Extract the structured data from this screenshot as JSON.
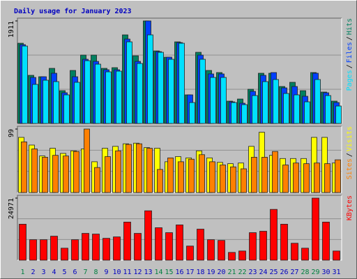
{
  "chart_data": [
    {
      "type": "bar",
      "title": "Daily usage for January 2023",
      "title_color": "#0000c0",
      "ylim": [
        0,
        1911
      ],
      "yticks": [
        1911
      ],
      "legend_separator": "/",
      "series": [
        {
          "name": "Hits",
          "color": "#008060",
          "values": [
            1495,
            897,
            871,
            1027,
            611,
            988,
            1274,
            1274,
            1027,
            1040,
            1651,
            1261,
            1911,
            1352,
            1235,
            1521,
            533,
            1326,
            988,
            949,
            416,
            455,
            637,
            936,
            936,
            689,
            767,
            611,
            949,
            585,
            416
          ]
        },
        {
          "name": "Files",
          "color": "#0040ff",
          "values": [
            1469,
            858,
            871,
            936,
            572,
            871,
            1196,
            1157,
            1001,
            1001,
            1573,
            1157,
            1911,
            1339,
            1235,
            1508,
            533,
            1274,
            923,
            923,
            403,
            377,
            598,
            897,
            949,
            663,
            689,
            507,
            936,
            572,
            390
          ]
        },
        {
          "name": "Pages",
          "color": "#00e0ff",
          "values": [
            1443,
            728,
            806,
            780,
            533,
            767,
            1170,
            1105,
            962,
            975,
            1521,
            1118,
            1651,
            1326,
            1196,
            1495,
            390,
            1196,
            858,
            858,
            390,
            351,
            520,
            780,
            819,
            559,
            533,
            403,
            819,
            520,
            325
          ]
        }
      ]
    },
    {
      "type": "bar",
      "ylim": [
        0,
        99
      ],
      "yticks": [
        99
      ],
      "legend_separator": "/",
      "series": [
        {
          "name": "Visits",
          "color": "#ffff00",
          "values": [
            86,
            74,
            57,
            69,
            61,
            65,
            68,
            48,
            69,
            72,
            76,
            77,
            70,
            69,
            48,
            56,
            54,
            65,
            54,
            47,
            45,
            46,
            72,
            94,
            58,
            53,
            53,
            53,
            86,
            86,
            46
          ]
        },
        {
          "name": "Sites",
          "color": "#ff8000",
          "values": [
            79,
            68,
            55,
            58,
            57,
            64,
            99,
            39,
            56,
            65,
            75,
            76,
            69,
            36,
            54,
            48,
            52,
            59,
            48,
            43,
            40,
            37,
            55,
            55,
            64,
            43,
            46,
            45,
            46,
            45,
            51
          ]
        }
      ]
    },
    {
      "type": "bar",
      "ylim": [
        0,
        24971
      ],
      "yticks": [
        24971
      ],
      "series": [
        {
          "name": "KBytes",
          "color": "#ff0000",
          "values": [
            14474,
            8230,
            8230,
            9649,
            4825,
            8230,
            10784,
            10500,
            8798,
            9365,
            15325,
            10784,
            19866,
            13055,
            11068,
            14190,
            5676,
            12487,
            8230,
            7946,
            3122,
            3689,
            11068,
            11636,
            20434,
            14474,
            6811,
            4825,
            24971,
            15325,
            3689
          ]
        }
      ],
      "categories": [
        "1",
        "2",
        "3",
        "4",
        "5",
        "6",
        "7",
        "8",
        "9",
        "10",
        "11",
        "12",
        "13",
        "14",
        "15",
        "16",
        "17",
        "18",
        "19",
        "20",
        "21",
        "22",
        "23",
        "24",
        "25",
        "26",
        "27",
        "28",
        "29",
        "30",
        "31"
      ],
      "category_colors": [
        "#008040",
        "#0000c0",
        "#0000c0",
        "#0000c0",
        "#0000c0",
        "#0000c0",
        "#008040",
        "#008040",
        "#0000c0",
        "#0000c0",
        "#0000c0",
        "#0000c0",
        "#0000c0",
        "#008040",
        "#008040",
        "#0000c0",
        "#0000c0",
        "#0000c0",
        "#0000c0",
        "#0000c0",
        "#008040",
        "#008040",
        "#0000c0",
        "#0000c0",
        "#0000c0",
        "#0000c0",
        "#0000c0",
        "#008040",
        "#008040",
        "#0000c0",
        "#0000c0"
      ]
    }
  ]
}
